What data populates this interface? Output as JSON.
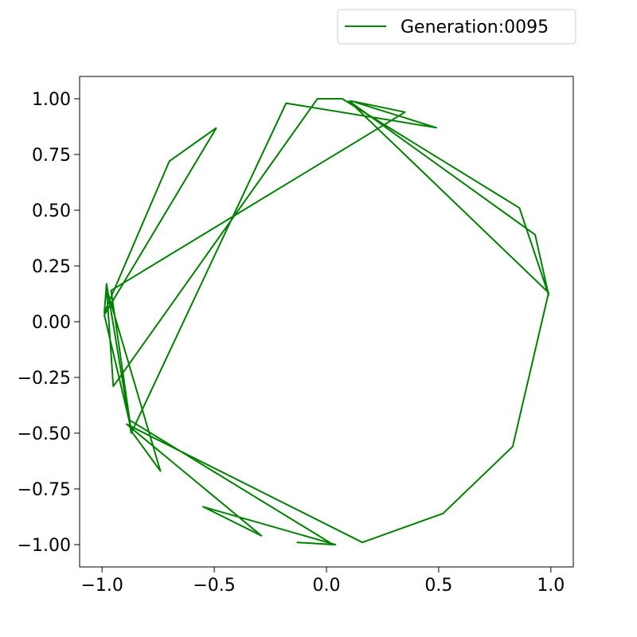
{
  "chart_data": {
    "type": "line",
    "title": "",
    "xlabel": "",
    "ylabel": "",
    "xlim": [
      -1.1,
      1.1
    ],
    "ylim": [
      -1.1,
      1.1
    ],
    "grid": false,
    "legend_position": "top-right, outside above the plot",
    "x_tick_labels": [
      {
        "value": -1.0,
        "label": "−1.0"
      },
      {
        "value": -0.5,
        "label": "−0.5"
      },
      {
        "value": 0.0,
        "label": "0.0"
      },
      {
        "value": 0.5,
        "label": "0.5"
      },
      {
        "value": 1.0,
        "label": "1.0"
      }
    ],
    "y_tick_labels": [
      {
        "value": 1.0,
        "label": "1.00"
      },
      {
        "value": 0.75,
        "label": "0.75"
      },
      {
        "value": 0.5,
        "label": "0.50"
      },
      {
        "value": 0.25,
        "label": "0.25"
      },
      {
        "value": 0.0,
        "label": "0.00"
      },
      {
        "value": -0.25,
        "label": "−0.25"
      },
      {
        "value": -0.5,
        "label": "−0.50"
      },
      {
        "value": -0.75,
        "label": "−0.75"
      },
      {
        "value": -1.0,
        "label": "−1.00"
      }
    ],
    "series": [
      {
        "name": "Generation:0095",
        "color": "#008000",
        "points": [
          [
            -0.49,
            0.87
          ],
          [
            -0.7,
            0.72
          ],
          [
            -0.99,
            0.04
          ],
          [
            -0.98,
            0.17
          ],
          [
            -0.87,
            -0.5
          ],
          [
            -0.18,
            0.98
          ],
          [
            0.49,
            0.87
          ],
          [
            0.11,
            0.99
          ],
          [
            0.35,
            0.94
          ],
          [
            -0.96,
            0.14
          ],
          [
            -0.87,
            -0.49
          ],
          [
            -0.74,
            -0.67
          ],
          [
            -0.98,
            0.15
          ],
          [
            -0.95,
            -0.29
          ],
          [
            -0.04,
            1.0
          ],
          [
            0.07,
            1.0
          ],
          [
            0.86,
            0.51
          ],
          [
            0.99,
            0.12
          ],
          [
            0.93,
            0.39
          ],
          [
            0.1,
            0.99
          ],
          [
            0.99,
            0.13
          ],
          [
            0.83,
            -0.56
          ],
          [
            0.52,
            -0.86
          ],
          [
            0.16,
            -0.99
          ],
          [
            -0.89,
            -0.46
          ],
          [
            -0.29,
            -0.96
          ],
          [
            -0.55,
            -0.83
          ],
          [
            0.04,
            -1.0
          ],
          [
            -0.13,
            -0.99
          ],
          [
            0.03,
            -1.0
          ],
          [
            -0.88,
            -0.44
          ],
          [
            -0.99,
            0.03
          ],
          [
            -0.49,
            0.87
          ]
        ]
      }
    ]
  }
}
